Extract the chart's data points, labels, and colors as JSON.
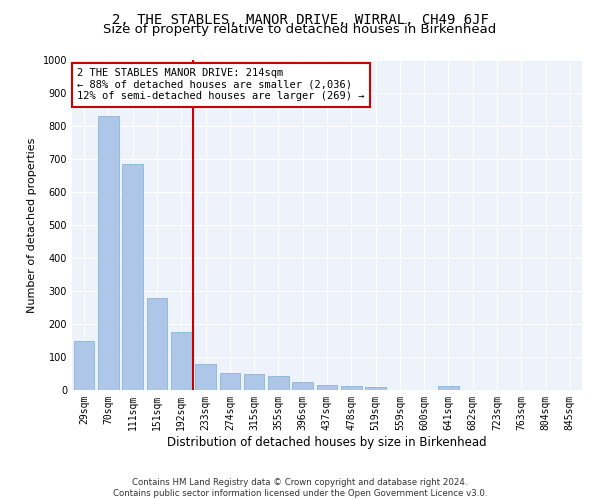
{
  "title": "2, THE STABLES, MANOR DRIVE, WIRRAL, CH49 6JF",
  "subtitle": "Size of property relative to detached houses in Birkenhead",
  "xlabel": "Distribution of detached houses by size in Birkenhead",
  "ylabel": "Number of detached properties",
  "categories": [
    "29sqm",
    "70sqm",
    "111sqm",
    "151sqm",
    "192sqm",
    "233sqm",
    "274sqm",
    "315sqm",
    "355sqm",
    "396sqm",
    "437sqm",
    "478sqm",
    "519sqm",
    "559sqm",
    "600sqm",
    "641sqm",
    "682sqm",
    "723sqm",
    "763sqm",
    "804sqm",
    "845sqm"
  ],
  "values": [
    147,
    830,
    685,
    278,
    175,
    78,
    52,
    50,
    42,
    24,
    15,
    12,
    10,
    0,
    0,
    11,
    0,
    0,
    0,
    0,
    0
  ],
  "bar_color": "#aec6e8",
  "bar_edgecolor": "#7aafd4",
  "vline_x": 4.5,
  "vline_color": "#cc0000",
  "annotation_text": "2 THE STABLES MANOR DRIVE: 214sqm\n← 88% of detached houses are smaller (2,036)\n12% of semi-detached houses are larger (269) →",
  "annotation_box_facecolor": "#ffffff",
  "annotation_box_edgecolor": "#cc0000",
  "ylim": [
    0,
    1000
  ],
  "yticks": [
    0,
    100,
    200,
    300,
    400,
    500,
    600,
    700,
    800,
    900,
    1000
  ],
  "background_color": "#eef2fb",
  "footer_line1": "Contains HM Land Registry data © Crown copyright and database right 2024.",
  "footer_line2": "Contains public sector information licensed under the Open Government Licence v3.0.",
  "title_fontsize": 10,
  "subtitle_fontsize": 9.5,
  "xlabel_fontsize": 8.5,
  "ylabel_fontsize": 8,
  "tick_fontsize": 7,
  "annotation_fontsize": 7.5,
  "footer_fontsize": 6.2
}
